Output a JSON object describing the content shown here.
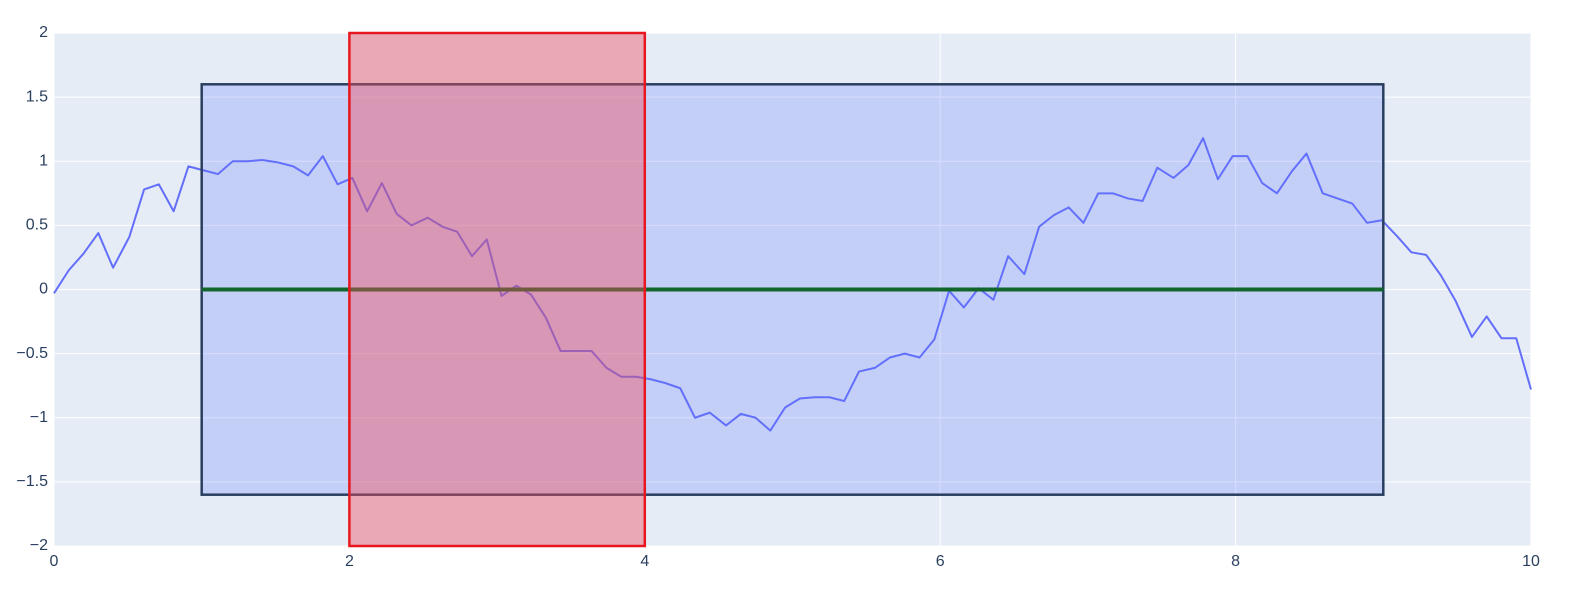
{
  "chart_data": {
    "type": "line",
    "x": [
      0,
      0.1,
      0.2,
      0.3,
      0.4,
      0.51,
      0.61,
      0.71,
      0.81,
      0.91,
      1.01,
      1.11,
      1.21,
      1.31,
      1.41,
      1.52,
      1.62,
      1.72,
      1.82,
      1.92,
      2.02,
      2.12,
      2.22,
      2.32,
      2.42,
      2.53,
      2.63,
      2.73,
      2.83,
      2.93,
      3.03,
      3.13,
      3.23,
      3.33,
      3.43,
      3.54,
      3.64,
      3.74,
      3.84,
      3.94,
      4.04,
      4.14,
      4.24,
      4.34,
      4.44,
      4.55,
      4.65,
      4.75,
      4.85,
      4.95,
      5.05,
      5.15,
      5.25,
      5.35,
      5.45,
      5.56,
      5.66,
      5.76,
      5.86,
      5.96,
      6.06,
      6.16,
      6.26,
      6.36,
      6.46,
      6.57,
      6.67,
      6.77,
      6.87,
      6.97,
      7.07,
      7.17,
      7.27,
      7.37,
      7.47,
      7.58,
      7.68,
      7.78,
      7.88,
      7.98,
      8.08,
      8.18,
      8.28,
      8.38,
      8.48,
      8.59,
      8.69,
      8.79,
      8.89,
      8.99,
      9.09,
      9.19,
      9.29,
      9.39,
      9.49,
      9.6,
      9.7,
      9.8,
      9.9,
      10
    ],
    "series": [
      {
        "color": "#636efa",
        "values": [
          -0.03,
          0.15,
          0.28,
          0.44,
          0.17,
          0.41,
          0.78,
          0.82,
          0.61,
          0.96,
          0.93,
          0.9,
          1.0,
          1.0,
          1.01,
          0.99,
          0.96,
          0.89,
          1.04,
          0.82,
          0.87,
          0.61,
          0.83,
          0.59,
          0.5,
          0.56,
          0.49,
          0.45,
          0.26,
          0.39,
          -0.05,
          0.03,
          -0.04,
          -0.22,
          -0.48,
          -0.48,
          -0.48,
          -0.61,
          -0.68,
          -0.68,
          -0.7,
          -0.73,
          -0.77,
          -1.0,
          -0.96,
          -1.06,
          -0.97,
          -1.0,
          -1.1,
          -0.92,
          -0.85,
          -0.84,
          -0.84,
          -0.87,
          -0.64,
          -0.61,
          -0.53,
          -0.5,
          -0.53,
          -0.39,
          -0.01,
          -0.14,
          0.01,
          -0.08,
          0.26,
          0.12,
          0.49,
          0.58,
          0.64,
          0.52,
          0.75,
          0.75,
          0.71,
          0.69,
          0.95,
          0.87,
          0.97,
          1.18,
          0.86,
          1.04,
          1.04,
          0.83,
          0.75,
          0.92,
          1.06,
          0.75,
          0.71,
          0.67,
          0.52,
          0.54,
          0.42,
          0.29,
          0.27,
          0.11,
          -0.09,
          -0.37,
          -0.21,
          -0.38,
          -0.38,
          -0.78
        ]
      }
    ],
    "shapes": [
      {
        "type": "rect",
        "x0": 1,
        "x1": 9,
        "y0": -1.6,
        "y1": 1.6,
        "fill": "#6478ff",
        "opacity": 0.25,
        "line_color": "#2a3f5f"
      },
      {
        "type": "line",
        "x0": 1,
        "x1": 9,
        "y0": 0,
        "y1": 0,
        "line_color": "#12662c"
      },
      {
        "type": "rect",
        "x0": 2,
        "x1": 4,
        "y0": -2,
        "y1": 2,
        "fill": "#f04a58",
        "opacity": 0.42,
        "line_color": "#e8161e"
      }
    ],
    "xlim": [
      0,
      10
    ],
    "xticks": [
      0,
      2,
      4,
      6,
      8,
      10
    ],
    "ylim": [
      -2,
      2
    ],
    "yticks": [
      {
        "value": -2,
        "label": "−2"
      },
      {
        "value": -1.5,
        "label": "−1.5"
      },
      {
        "value": -1,
        "label": "−1"
      },
      {
        "value": -0.5,
        "label": "−0.5"
      },
      0,
      0.5,
      1,
      1.5,
      2
    ],
    "grid": true
  }
}
